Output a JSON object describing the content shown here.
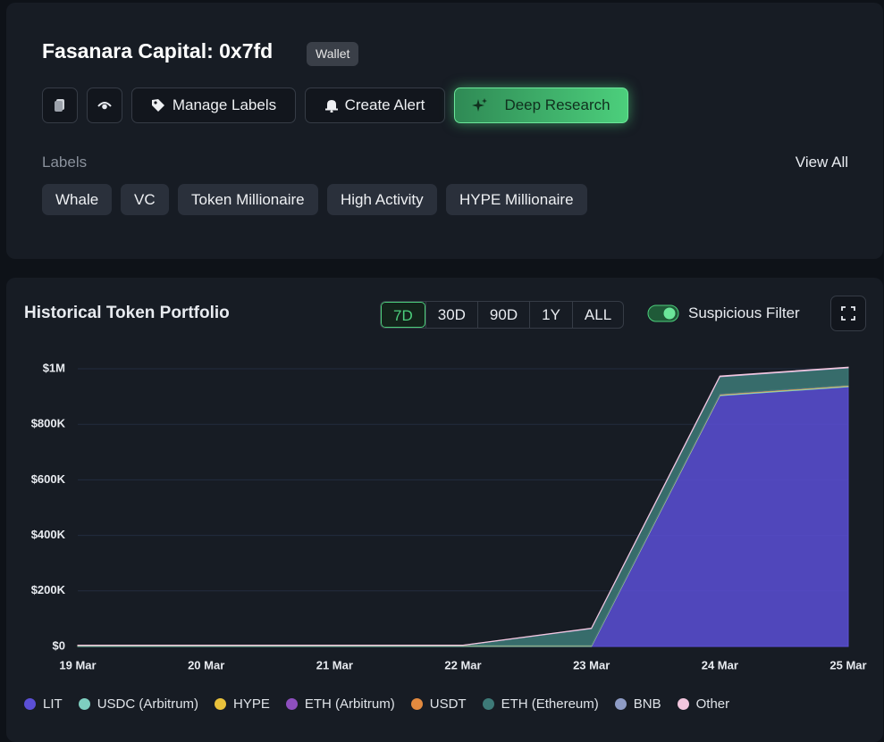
{
  "header": {
    "title": "Fasanara Capital: 0x7fd",
    "badge": "Wallet",
    "buttons": [
      "Manage Labels",
      "Create Alert",
      "Deep Research"
    ],
    "labels_heading": "Labels",
    "view_all": "View All",
    "labels": [
      "Whale",
      "VC",
      "Token Millionaire",
      "High Activity",
      "HYPE Millionaire"
    ]
  },
  "panel": {
    "title": "Historical Token Portfolio",
    "ranges": [
      "7D",
      "30D",
      "90D",
      "1Y",
      "ALL"
    ],
    "active_range": 0,
    "filter": "Suspicious Filter"
  },
  "chart_data": {
    "type": "area",
    "stacked": true,
    "categories": [
      "19 Mar",
      "20 Mar",
      "21 Mar",
      "22 Mar",
      "23 Mar",
      "24 Mar",
      "25 Mar"
    ],
    "ylim": [
      0,
      1040000
    ],
    "yticks": [
      {
        "value": 0,
        "label": "$0"
      },
      {
        "value": 200000,
        "label": "$200K"
      },
      {
        "value": 400000,
        "label": "$400K"
      },
      {
        "value": 600000,
        "label": "$600K"
      },
      {
        "value": 800000,
        "label": "$800K"
      },
      {
        "value": 1000000,
        "label": "$1M"
      }
    ],
    "grid": true,
    "series": [
      {
        "name": "LIT",
        "color": "#5b4fd6",
        "values": [
          0,
          0,
          0,
          0,
          0,
          903000,
          935000
        ]
      },
      {
        "name": "USDC (Arbitrum)",
        "color": "#7ecfc0",
        "values": [
          3000,
          3000,
          3000,
          3000,
          3000,
          3000,
          3000
        ]
      },
      {
        "name": "HYPE",
        "color": "#e9c13b",
        "values": [
          1000,
          1000,
          1000,
          1000,
          1000,
          2000,
          2000
        ]
      },
      {
        "name": "ETH (Arbitrum)",
        "color": "#8e4fbf",
        "values": [
          0,
          0,
          0,
          0,
          0,
          1000,
          1000
        ]
      },
      {
        "name": "USDT",
        "color": "#e28a3f",
        "values": [
          0,
          0,
          0,
          0,
          0,
          0,
          0
        ]
      },
      {
        "name": "ETH (Ethereum)",
        "color": "#3d7a78",
        "values": [
          0,
          0,
          0,
          0,
          60000,
          62000,
          62000
        ]
      },
      {
        "name": "BNB",
        "color": "#8e9cc6",
        "values": [
          0,
          0,
          0,
          0,
          1000,
          1000,
          1000
        ]
      },
      {
        "name": "Other",
        "color": "#f3c6de",
        "values": [
          1000,
          1000,
          1000,
          1000,
          1000,
          2000,
          2000
        ]
      }
    ]
  }
}
